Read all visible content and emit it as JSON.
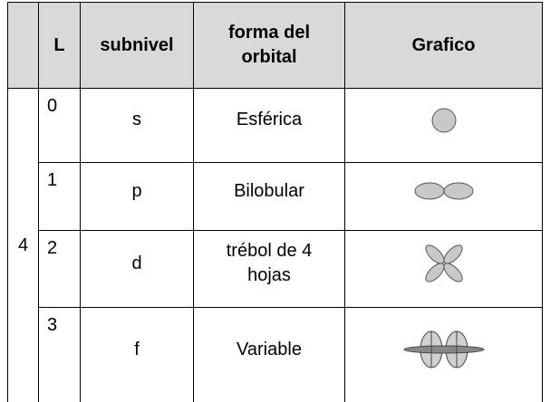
{
  "table": {
    "header": [
      "L",
      "subnivel",
      "forma del orbital",
      "Grafico"
    ],
    "n": 4,
    "rows": [
      {
        "l": 0,
        "subnivel": "s",
        "forma": "Esférica"
      },
      {
        "l": 1,
        "subnivel": "p",
        "forma": "Bilobular"
      },
      {
        "l": 2,
        "subnivel": "d",
        "forma": "trébol de 4 hojas"
      },
      {
        "l": 3,
        "subnivel": "f",
        "forma": "Variable"
      }
    ]
  }
}
